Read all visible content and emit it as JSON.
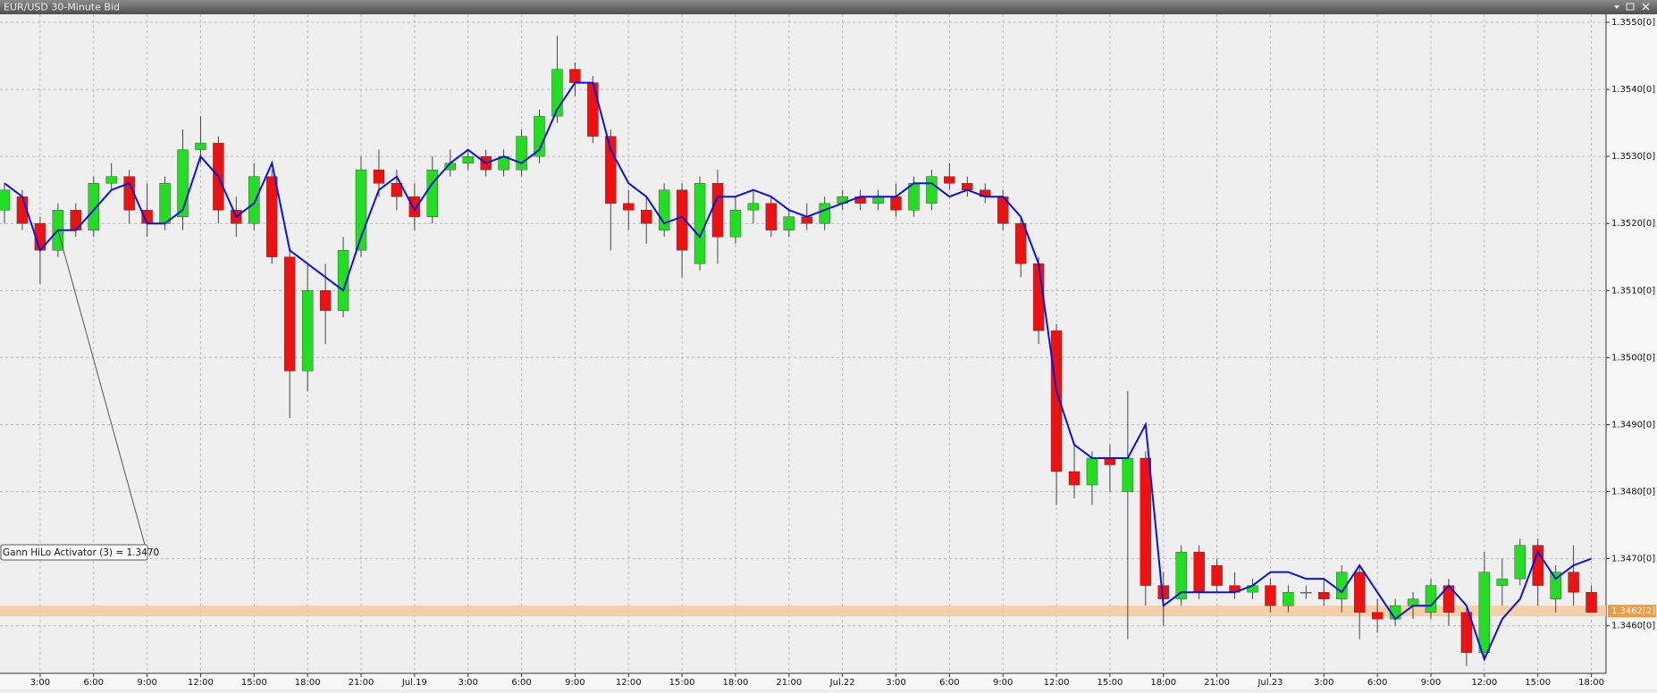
{
  "chart_data": {
    "type": "candlestick",
    "title": "EUR/USD 30-Minute Bid",
    "categories": [
      null,
      null,
      "3:00",
      null,
      null,
      "6:00",
      null,
      null,
      "9:00",
      null,
      null,
      "12:00",
      null,
      null,
      "15:00",
      null,
      null,
      "18:00",
      null,
      null,
      "21:00",
      null,
      null,
      "Jul.19",
      null,
      null,
      "3:00",
      null,
      null,
      "6:00",
      null,
      null,
      "9:00",
      null,
      null,
      "12:00",
      null,
      null,
      "15:00",
      null,
      null,
      "18:00",
      null,
      null,
      "21:00",
      null,
      null,
      "Jul.22",
      null,
      null,
      "3:00",
      null,
      null,
      "6:00",
      null,
      null,
      "9:00",
      null,
      null,
      "12:00",
      null,
      null,
      "15:00",
      null,
      null,
      "18:00",
      null,
      null,
      "21:00",
      null,
      null,
      "Jul.23",
      null,
      null,
      "3:00",
      null,
      null,
      "6:00",
      null,
      null,
      "9:00",
      null,
      null,
      "12:00",
      null,
      null,
      "15:00",
      null,
      null,
      "18:00"
    ],
    "ohlc": [
      [
        1.3522,
        1.3526,
        1.352,
        1.3525
      ],
      [
        1.3524,
        1.3525,
        1.3519,
        1.352
      ],
      [
        1.352,
        1.3521,
        1.3511,
        1.3516
      ],
      [
        1.3516,
        1.3523,
        1.3515,
        1.3522
      ],
      [
        1.3522,
        1.3523,
        1.3518,
        1.3519
      ],
      [
        1.3519,
        1.3527,
        1.3518,
        1.3526
      ],
      [
        1.3526,
        1.3529,
        1.3525,
        1.3527
      ],
      [
        1.3527,
        1.3528,
        1.352,
        1.3522
      ],
      [
        1.3522,
        1.3526,
        1.3518,
        1.352
      ],
      [
        1.352,
        1.3527,
        1.3519,
        1.3526
      ],
      [
        1.3521,
        1.3534,
        1.3519,
        1.3531
      ],
      [
        1.3531,
        1.3536,
        1.3529,
        1.3532
      ],
      [
        1.3532,
        1.3533,
        1.352,
        1.3522
      ],
      [
        1.3522,
        1.3524,
        1.3518,
        1.352
      ],
      [
        1.352,
        1.3529,
        1.3519,
        1.3527
      ],
      [
        1.3527,
        1.3528,
        1.3514,
        1.3515
      ],
      [
        1.3515,
        1.3516,
        1.3491,
        1.3498
      ],
      [
        1.3498,
        1.3514,
        1.3495,
        1.351
      ],
      [
        1.351,
        1.3514,
        1.3502,
        1.3507
      ],
      [
        1.3507,
        1.3518,
        1.3506,
        1.3516
      ],
      [
        1.3516,
        1.353,
        1.3515,
        1.3528
      ],
      [
        1.3528,
        1.3531,
        1.3524,
        1.3526
      ],
      [
        1.3526,
        1.3528,
        1.3522,
        1.3524
      ],
      [
        1.3524,
        1.3526,
        1.3519,
        1.3521
      ],
      [
        1.3521,
        1.353,
        1.352,
        1.3528
      ],
      [
        1.3528,
        1.3531,
        1.3527,
        1.3529
      ],
      [
        1.3529,
        1.3531,
        1.3528,
        1.353
      ],
      [
        1.353,
        1.3531,
        1.3527,
        1.3528
      ],
      [
        1.3528,
        1.3531,
        1.3527,
        1.353
      ],
      [
        1.3528,
        1.3534,
        1.3527,
        1.3533
      ],
      [
        1.353,
        1.3537,
        1.3529,
        1.3536
      ],
      [
        1.3536,
        1.3548,
        1.3535,
        1.3543
      ],
      [
        1.3543,
        1.3544,
        1.3539,
        1.3541
      ],
      [
        1.3541,
        1.3542,
        1.3532,
        1.3533
      ],
      [
        1.3533,
        1.3534,
        1.3516,
        1.3523
      ],
      [
        1.3523,
        1.3525,
        1.3519,
        1.3522
      ],
      [
        1.3522,
        1.3524,
        1.3517,
        1.352
      ],
      [
        1.3519,
        1.3526,
        1.3518,
        1.3525
      ],
      [
        1.3525,
        1.3526,
        1.3512,
        1.3516
      ],
      [
        1.3514,
        1.3527,
        1.3513,
        1.3526
      ],
      [
        1.3526,
        1.3528,
        1.3514,
        1.3518
      ],
      [
        1.3518,
        1.3524,
        1.3517,
        1.3522
      ],
      [
        1.3522,
        1.3525,
        1.352,
        1.3523
      ],
      [
        1.3523,
        1.3524,
        1.3518,
        1.3519
      ],
      [
        1.3519,
        1.3522,
        1.3518,
        1.3521
      ],
      [
        1.3521,
        1.3523,
        1.3519,
        1.352
      ],
      [
        1.352,
        1.3524,
        1.3519,
        1.3523
      ],
      [
        1.3523,
        1.3525,
        1.3522,
        1.3524
      ],
      [
        1.3524,
        1.3525,
        1.3522,
        1.3523
      ],
      [
        1.3523,
        1.3525,
        1.3522,
        1.3524
      ],
      [
        1.3524,
        1.3526,
        1.3521,
        1.3522
      ],
      [
        1.3522,
        1.3527,
        1.3521,
        1.3526
      ],
      [
        1.3523,
        1.3528,
        1.3522,
        1.3527
      ],
      [
        1.3527,
        1.3529,
        1.3525,
        1.3526
      ],
      [
        1.3526,
        1.3527,
        1.3524,
        1.3525
      ],
      [
        1.3525,
        1.3526,
        1.3523,
        1.3524
      ],
      [
        1.3524,
        1.3525,
        1.3519,
        1.352
      ],
      [
        1.352,
        1.3521,
        1.3512,
        1.3514
      ],
      [
        1.3514,
        1.3515,
        1.3502,
        1.3504
      ],
      [
        1.3504,
        1.3505,
        1.3478,
        1.3483
      ],
      [
        1.3483,
        1.3487,
        1.3479,
        1.3481
      ],
      [
        1.3481,
        1.3486,
        1.3478,
        1.3485
      ],
      [
        1.3485,
        1.3487,
        1.348,
        1.3484
      ],
      [
        1.348,
        1.3495,
        1.3458,
        1.3485
      ],
      [
        1.3485,
        1.3486,
        1.3463,
        1.3466
      ],
      [
        1.3466,
        1.3468,
        1.346,
        1.3464
      ],
      [
        1.3464,
        1.3472,
        1.3463,
        1.3471
      ],
      [
        1.3471,
        1.3472,
        1.3464,
        1.3465
      ],
      [
        1.3469,
        1.347,
        1.3465,
        1.3466
      ],
      [
        1.3466,
        1.3468,
        1.3464,
        1.3465
      ],
      [
        1.3465,
        1.3467,
        1.3464,
        1.3466
      ],
      [
        1.3466,
        1.3467,
        1.3462,
        1.3463
      ],
      [
        1.3463,
        1.3466,
        1.3462,
        1.3465
      ],
      [
        1.3465,
        1.3466,
        1.3464,
        1.3465
      ],
      [
        1.3465,
        1.3467,
        1.3463,
        1.3464
      ],
      [
        1.3464,
        1.3469,
        1.3462,
        1.3468
      ],
      [
        1.3468,
        1.3469,
        1.3458,
        1.3462
      ],
      [
        1.3462,
        1.3464,
        1.3459,
        1.3461
      ],
      [
        1.3461,
        1.3464,
        1.346,
        1.3463
      ],
      [
        1.3463,
        1.3465,
        1.3461,
        1.3464
      ],
      [
        1.3462,
        1.3467,
        1.3461,
        1.3466
      ],
      [
        1.3466,
        1.3467,
        1.346,
        1.3462
      ],
      [
        1.3462,
        1.3463,
        1.3454,
        1.3456
      ],
      [
        1.3456,
        1.3471,
        1.3455,
        1.3468
      ],
      [
        1.3466,
        1.347,
        1.3463,
        1.3467
      ],
      [
        1.3467,
        1.3473,
        1.3466,
        1.3472
      ],
      [
        1.3472,
        1.3473,
        1.3463,
        1.3466
      ],
      [
        1.3464,
        1.3469,
        1.3462,
        1.3468
      ],
      [
        1.3468,
        1.3472,
        1.3463,
        1.3465
      ],
      [
        1.3465,
        1.3466,
        1.3462,
        1.3462
      ]
    ],
    "up_color": "#22dd22",
    "down_color": "#ee1111",
    "wick_color": "#444444",
    "indicator": {
      "name": "Gann HiLo Activator (3) = 1.3470",
      "color": "#0a14d8",
      "values": [
        1.3526,
        1.3524,
        1.3516,
        1.3519,
        1.3519,
        1.3522,
        1.3525,
        1.3526,
        1.352,
        1.352,
        1.3522,
        1.353,
        1.3527,
        1.3521,
        1.3523,
        1.3529,
        1.3516,
        1.3514,
        1.3512,
        1.351,
        1.3518,
        1.3525,
        1.3527,
        1.3522,
        1.3526,
        1.3529,
        1.3531,
        1.3529,
        1.353,
        1.3529,
        1.3531,
        1.3537,
        1.3541,
        1.3541,
        1.3531,
        1.3526,
        1.3524,
        1.352,
        1.3521,
        1.3518,
        1.3524,
        1.3524,
        1.3525,
        1.3524,
        1.3522,
        1.3521,
        1.3522,
        1.3523,
        1.3524,
        1.3524,
        1.3524,
        1.3526,
        1.3526,
        1.3524,
        1.3525,
        1.3524,
        1.3524,
        1.3521,
        1.3514,
        1.3495,
        1.3487,
        1.3485,
        1.3485,
        1.3485,
        1.349,
        1.3463,
        1.3465,
        1.3465,
        1.3465,
        1.3465,
        1.3466,
        1.3468,
        1.3468,
        1.3467,
        1.3467,
        1.3465,
        1.3469,
        1.3465,
        1.3461,
        1.3463,
        1.3463,
        1.3466,
        1.3463,
        1.3455,
        1.3461,
        1.3464,
        1.3471,
        1.3467,
        1.3469,
        1.347
      ]
    },
    "current_price": {
      "value": 1.34622,
      "label": "1.3462[2]"
    },
    "ylim": [
      1.34529,
      1.35512
    ],
    "yticks": [
      {
        "value": 1.355,
        "label": "1.3550[0]"
      },
      {
        "value": 1.354,
        "label": "1.3540[0]"
      },
      {
        "value": 1.353,
        "label": "1.3530[0]"
      },
      {
        "value": 1.352,
        "label": "1.3520[0]"
      },
      {
        "value": 1.351,
        "label": "1.3510[0]"
      },
      {
        "value": 1.35,
        "label": "1.3500[0]"
      },
      {
        "value": 1.349,
        "label": "1.3490[0]"
      },
      {
        "value": 1.348,
        "label": "1.3480[0]"
      },
      {
        "value": 1.347,
        "label": "1.3470[0]"
      },
      {
        "value": 1.346,
        "label": "1.3460[0]"
      }
    ],
    "grid": true
  }
}
